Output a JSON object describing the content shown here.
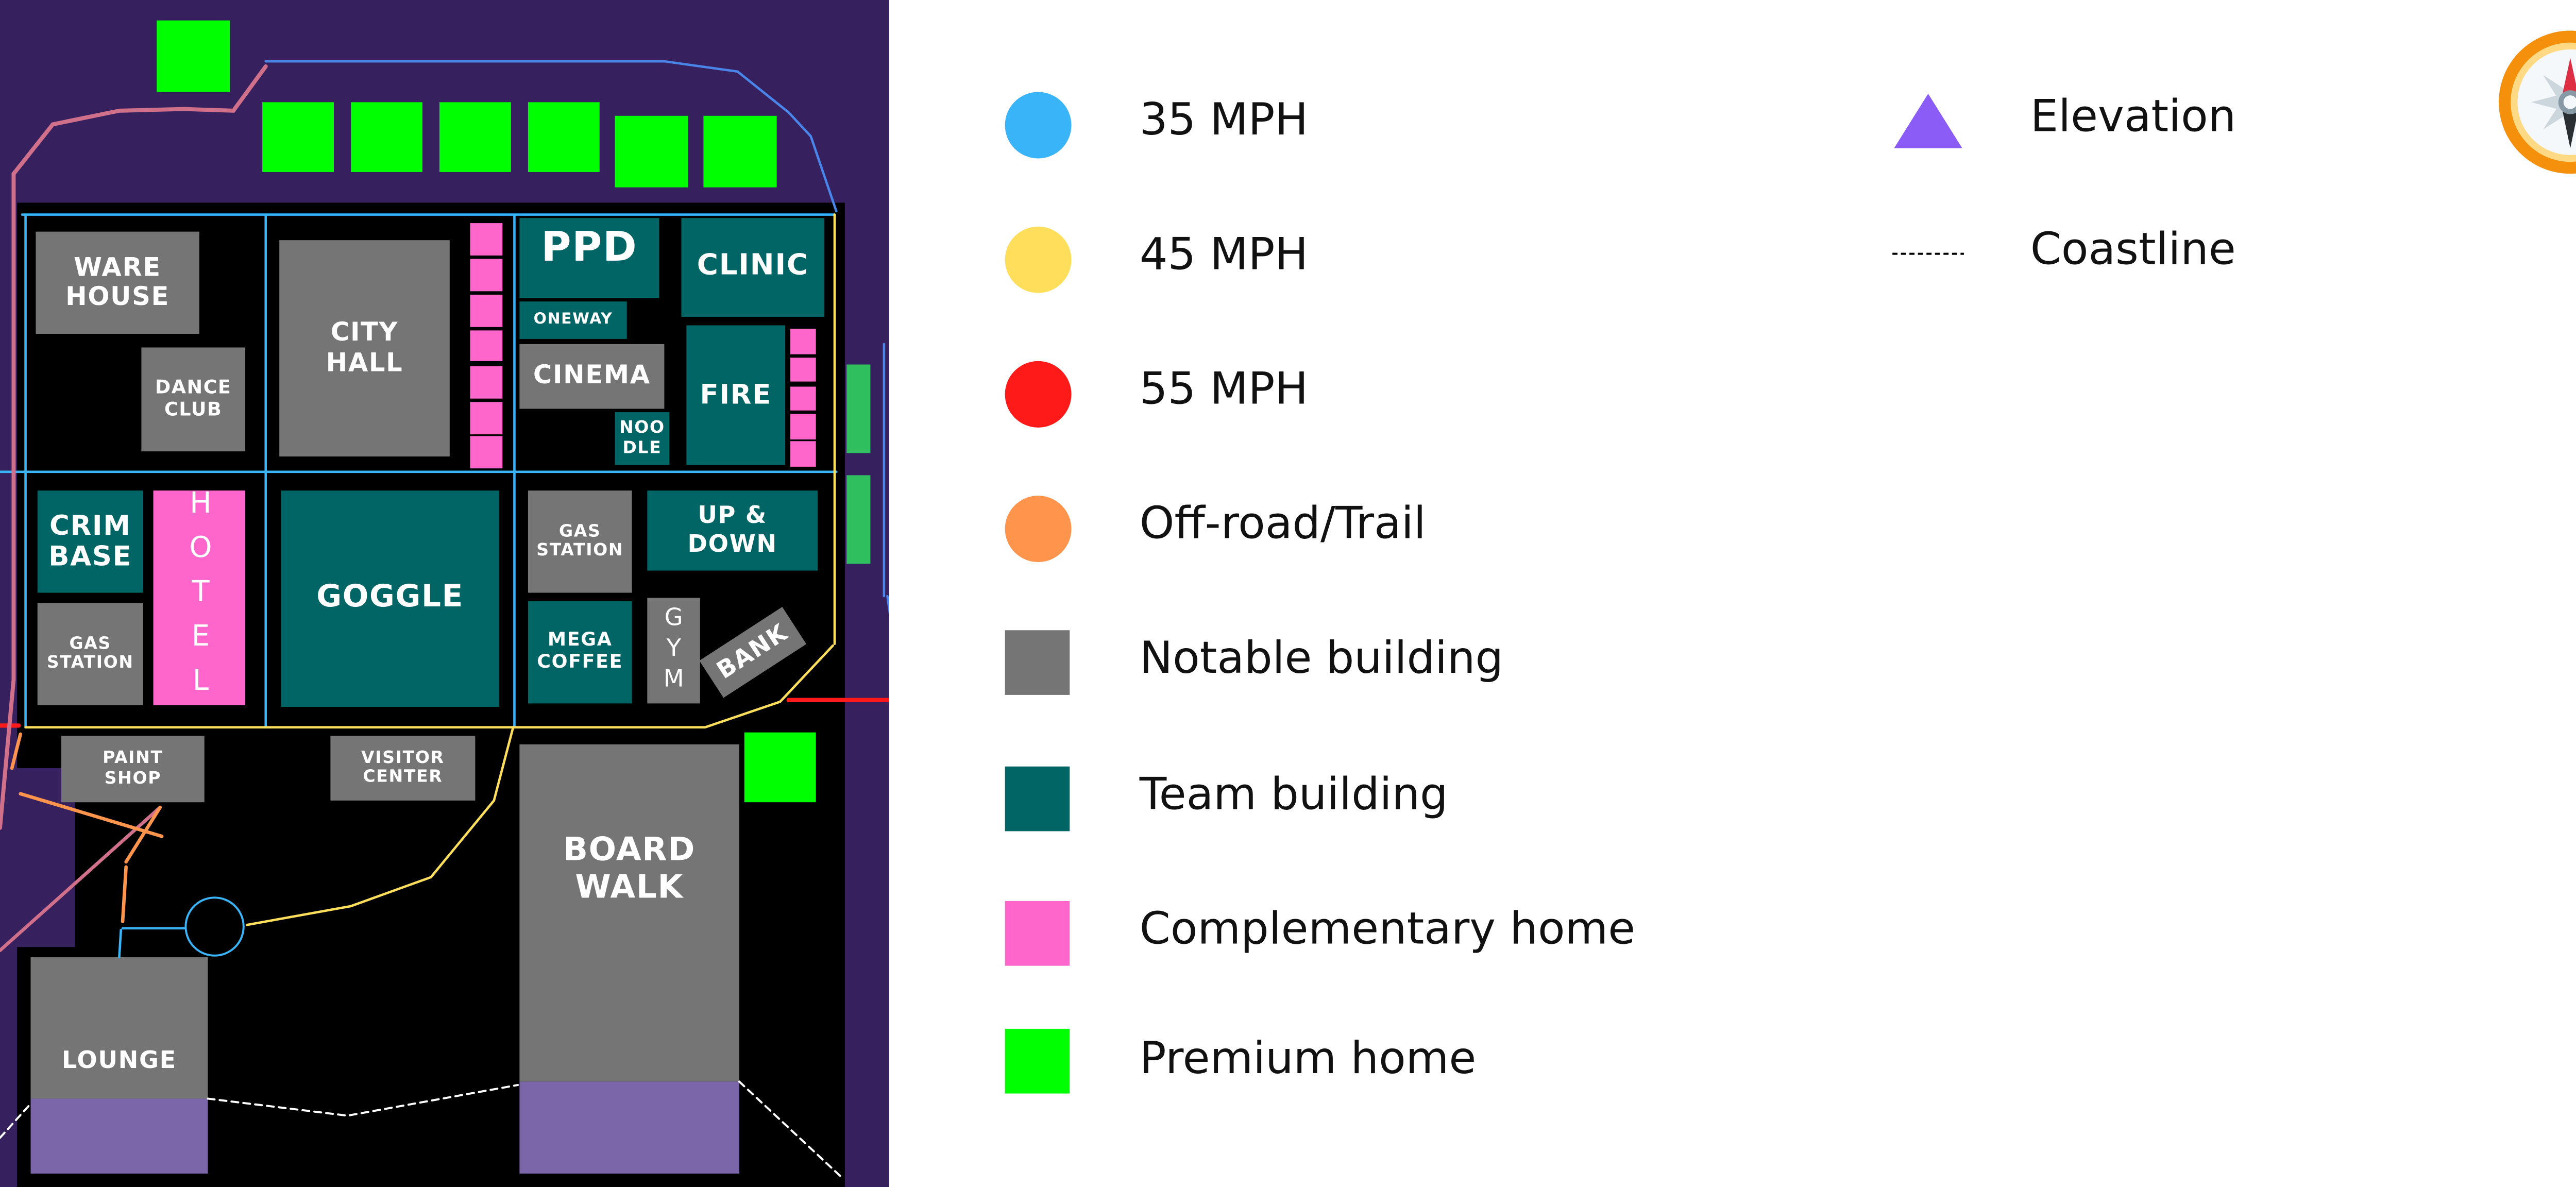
{
  "map": {
    "buildings": {
      "warehouse": "WARE\nHOUSE",
      "dance_club": "DANCE\nCLUB",
      "city_hall": "CITY\nHALL",
      "ppd": "PPD",
      "clinic": "CLINIC",
      "oneway": "ONEWAY",
      "cinema": "CINEMA",
      "noodle": "NOO\nDLE",
      "fire": "FIRE",
      "crim_base": "CRIM\nBASE",
      "gas_station_west": "GAS\nSTATION",
      "hotel": "HOTEL",
      "goggle": "GOGGLE",
      "gas_station_east": "GAS\nSTATION",
      "up_and_down": "UP &\nDOWN",
      "mega_coffee": "MEGA\nCOFFEE",
      "gym": "GYM",
      "bank": "BANK",
      "paint_shop": "PAINT\nSHOP",
      "visitor_center": "VISITOR\nCENTER",
      "board_walk": "BOARD\nWALK",
      "lounge": "LOUNGE"
    }
  },
  "legend": {
    "items": [
      {
        "label": "35 MPH",
        "color": "#3ab4f8",
        "shape": "circle"
      },
      {
        "label": "45 MPH",
        "color": "#fede5a",
        "shape": "circle"
      },
      {
        "label": "55 MPH",
        "color": "#ff1a1a",
        "shape": "circle"
      },
      {
        "label": "Off-road/Trail",
        "color": "#ff944d",
        "shape": "circle"
      },
      {
        "label": "Notable building",
        "color": "#757575",
        "shape": "square"
      },
      {
        "label": "Team building",
        "color": "#026565",
        "shape": "square"
      },
      {
        "label": "Complementary home",
        "color": "#ff66cc",
        "shape": "square"
      },
      {
        "label": "Premium home",
        "color": "#00ff00",
        "shape": "square"
      },
      {
        "label": "Elevation",
        "color": "#8b5cf6",
        "shape": "triangle"
      },
      {
        "label": "Coastline",
        "color": "#000000",
        "shape": "dashed-line"
      }
    ]
  },
  "compass": {
    "icon": "compass-icon"
  },
  "colors": {
    "background": "#36205e",
    "land": "#000000",
    "elevation_fill": "#7a66a8"
  }
}
